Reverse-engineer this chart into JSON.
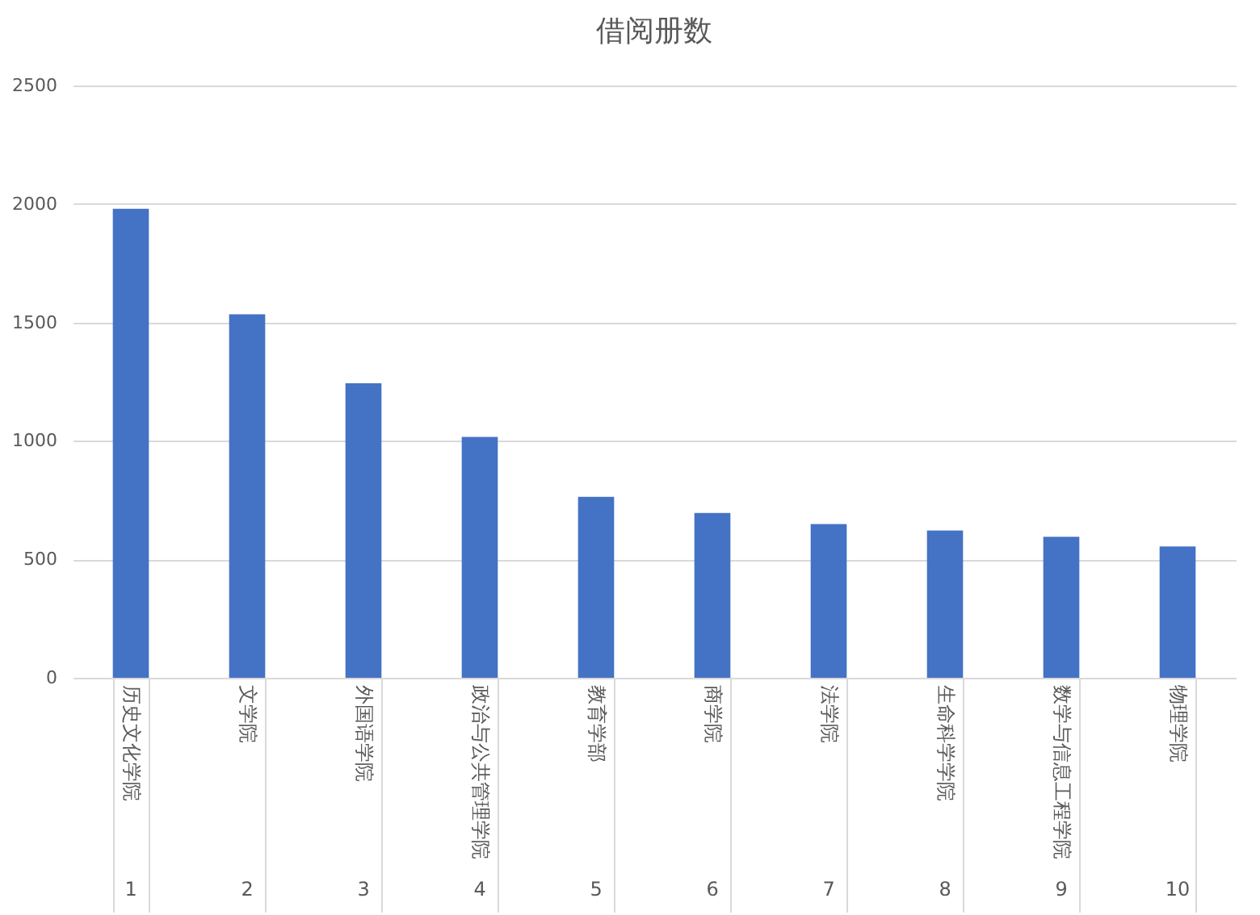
{
  "chart_data": {
    "type": "bar",
    "title": "借阅册数",
    "categories": [
      "历史文化学院",
      "文学院",
      "外国语学院",
      "政治与公共管理学院",
      "教育学部",
      "商学院",
      "法学院",
      "生命科学学院",
      "数学与信息工程学院",
      "物理学院"
    ],
    "values": [
      1980,
      1534,
      1243,
      1017,
      764,
      696,
      649,
      622,
      595,
      554
    ],
    "color": "#4472c4",
    "ylim": [
      0,
      2500
    ],
    "yticks": [
      0,
      500,
      1000,
      1500,
      2000,
      2500
    ],
    "grid": "y",
    "annotations": [
      "1",
      "2",
      "3",
      "4",
      "5",
      "6",
      "7",
      "8",
      "9",
      "10"
    ]
  }
}
